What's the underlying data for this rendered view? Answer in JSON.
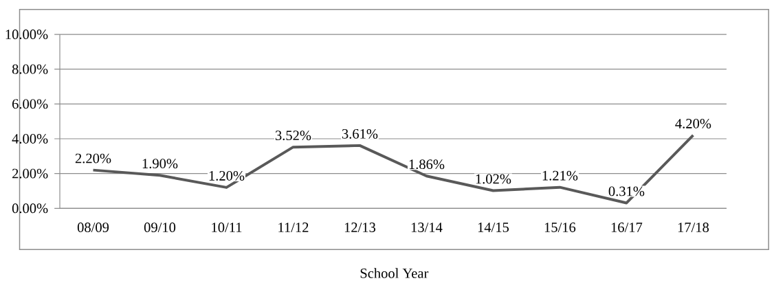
{
  "chart_data": {
    "type": "line",
    "xlabel": "School Year",
    "categories": [
      "08/09",
      "09/10",
      "10/11",
      "11/12",
      "12/13",
      "13/14",
      "14/15",
      "15/16",
      "16/17",
      "17/18"
    ],
    "values": [
      2.2,
      1.9,
      1.2,
      3.52,
      3.61,
      1.86,
      1.02,
      1.21,
      0.31,
      4.2
    ],
    "value_labels": [
      "2.20%",
      "1.90%",
      "1.20%",
      "3.52%",
      "3.61%",
      "1.86%",
      "1.02%",
      "1.21%",
      "0.31%",
      "4.20%"
    ],
    "color": "#595959",
    "ylim": [
      0,
      10
    ],
    "yticks": [
      {
        "value": 0,
        "label": "0.00%"
      },
      {
        "value": 2,
        "label": "2.00%"
      },
      {
        "value": 4,
        "label": "4.00%"
      },
      {
        "value": 6,
        "label": "6.00%"
      },
      {
        "value": 8,
        "label": "8.00%"
      },
      {
        "value": 10,
        "label": "10.00%"
      }
    ],
    "grid": "y",
    "marker": "none",
    "line_style": "solid"
  }
}
